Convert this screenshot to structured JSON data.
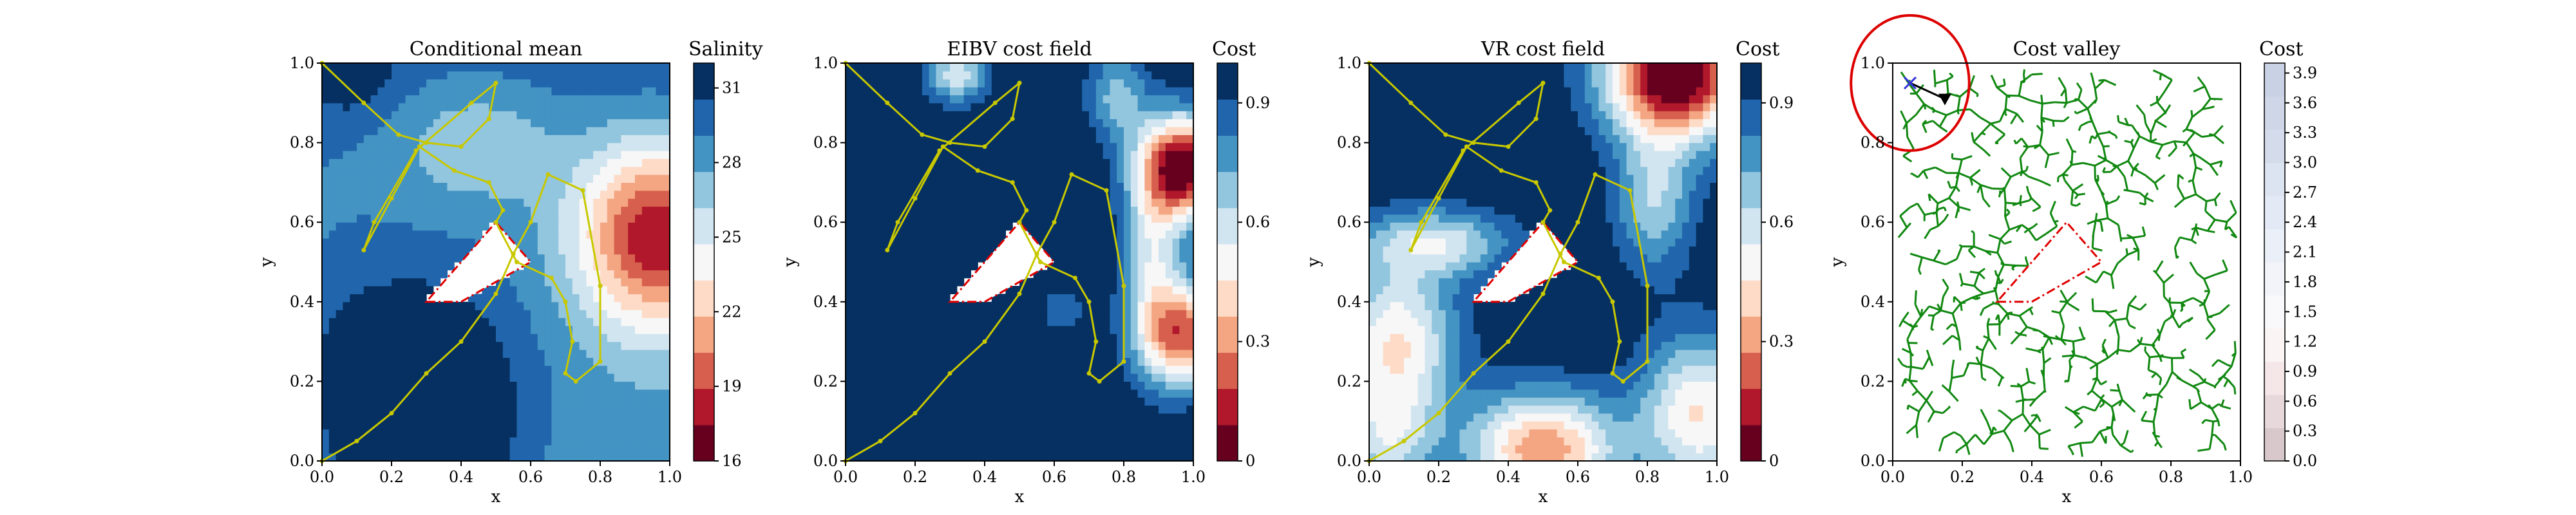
{
  "colors": {
    "rdbu": [
      "#67001f",
      "#b2182b",
      "#d6604d",
      "#f4a582",
      "#fddbc7",
      "#f7f7f7",
      "#d1e5f0",
      "#92c5de",
      "#4393c3",
      "#2166ac",
      "#053061"
    ],
    "path_yellow": "#c8c800",
    "obstacle_red": "#e00000",
    "tree_green": "#118811",
    "start_blue": "#3333dd",
    "current_black": "#000000",
    "budget_circle": "#dd0000"
  },
  "chart_data": [
    {
      "type": "heatmap",
      "title": "Conditional mean",
      "xlabel": "x",
      "ylabel": "y",
      "xlim": [
        0,
        1
      ],
      "ylim": [
        0,
        1
      ],
      "xticks": [
        "0.0",
        "0.2",
        "0.4",
        "0.6",
        "0.8",
        "1.0"
      ],
      "yticks": [
        "0.0",
        "0.2",
        "0.4",
        "0.6",
        "0.8",
        "1.0"
      ],
      "colorbar": {
        "label": "Salinity",
        "range": [
          16,
          32
        ],
        "ticks": [
          16,
          19,
          22,
          25,
          28,
          31
        ],
        "colors": [
          "#67001f",
          "#b2182b",
          "#d6604d",
          "#f4a582",
          "#fddbc7",
          "#f7f7f7",
          "#d1e5f0",
          "#92c5de",
          "#4393c3",
          "#2166ac",
          "#053061"
        ]
      },
      "field": {
        "base": 27.3,
        "gradient": [
          0.8,
          2.5
        ],
        "bumps": [
          {
            "x": 0.28,
            "y": 0.05,
            "amp": 6.0,
            "sx": 0.2,
            "sy": 0.2
          },
          {
            "x": 0.2,
            "y": 0.28,
            "amp": 2.2,
            "sx": 0.22,
            "sy": 0.16
          },
          {
            "x": 0.97,
            "y": 0.57,
            "amp": -12.0,
            "sx": 0.17,
            "sy": 0.17
          },
          {
            "x": 0.45,
            "y": 0.8,
            "amp": -3.0,
            "sx": 0.18,
            "sy": 0.12
          },
          {
            "x": 0.08,
            "y": 0.97,
            "amp": 2.0,
            "sx": 0.1,
            "sy": 0.08
          }
        ]
      },
      "obstacle": [
        [
          0.3,
          0.4
        ],
        [
          0.4,
          0.4
        ],
        [
          0.6,
          0.5
        ],
        [
          0.5,
          0.6
        ]
      ],
      "path": [
        [
          0.0,
          1.0
        ],
        [
          0.12,
          0.9
        ],
        [
          0.22,
          0.82
        ],
        [
          0.3,
          0.8
        ],
        [
          0.4,
          0.79
        ],
        [
          0.48,
          0.86
        ],
        [
          0.5,
          0.95
        ],
        [
          0.43,
          0.9
        ],
        [
          0.27,
          0.78
        ],
        [
          0.15,
          0.6
        ],
        [
          0.12,
          0.53
        ],
        [
          0.2,
          0.66
        ],
        [
          0.28,
          0.79
        ],
        [
          0.38,
          0.73
        ],
        [
          0.48,
          0.7
        ],
        [
          0.52,
          0.63
        ],
        [
          0.5,
          0.6
        ],
        [
          0.56,
          0.5
        ],
        [
          0.66,
          0.46
        ],
        [
          0.7,
          0.4
        ],
        [
          0.72,
          0.3
        ],
        [
          0.7,
          0.22
        ],
        [
          0.73,
          0.2
        ],
        [
          0.8,
          0.25
        ],
        [
          0.8,
          0.44
        ],
        [
          0.75,
          0.68
        ],
        [
          0.65,
          0.72
        ],
        [
          0.6,
          0.6
        ],
        [
          0.55,
          0.52
        ],
        [
          0.5,
          0.42
        ],
        [
          0.4,
          0.3
        ],
        [
          0.3,
          0.22
        ],
        [
          0.2,
          0.12
        ],
        [
          0.1,
          0.05
        ],
        [
          0.0,
          0.0
        ]
      ]
    },
    {
      "type": "heatmap",
      "title": "EIBV cost field",
      "xlabel": "x",
      "ylabel": "y",
      "xlim": [
        0,
        1
      ],
      "ylim": [
        0,
        1
      ],
      "xticks": [
        "0.0",
        "0.2",
        "0.4",
        "0.6",
        "0.8",
        "1.0"
      ],
      "yticks": [
        "0.0",
        "0.2",
        "0.4",
        "0.6",
        "0.8",
        "1.0"
      ],
      "colorbar": {
        "label": "Cost",
        "range": [
          0,
          1
        ],
        "ticks": [
          0.0,
          0.3,
          0.6,
          0.9
        ],
        "colors": [
          "#67001f",
          "#b2182b",
          "#d6604d",
          "#f4a582",
          "#fddbc7",
          "#f7f7f7",
          "#d1e5f0",
          "#92c5de",
          "#4393c3",
          "#2166ac",
          "#053061"
        ]
      },
      "field": {
        "base": 1.0,
        "gradient": [
          0,
          0
        ],
        "bumps": [
          {
            "x": 0.98,
            "y": 0.74,
            "amp": -1.0,
            "sx": 0.09,
            "sy": 0.09
          },
          {
            "x": 0.98,
            "y": 0.32,
            "amp": -0.75,
            "sx": 0.09,
            "sy": 0.09
          },
          {
            "x": 0.88,
            "y": 0.52,
            "amp": -0.4,
            "sx": 0.06,
            "sy": 0.18
          },
          {
            "x": 0.32,
            "y": 0.97,
            "amp": -0.42,
            "sx": 0.06,
            "sy": 0.05
          },
          {
            "x": 0.78,
            "y": 0.92,
            "amp": -0.3,
            "sx": 0.06,
            "sy": 0.08
          },
          {
            "x": 0.62,
            "y": 0.38,
            "amp": -0.15,
            "sx": 0.05,
            "sy": 0.05
          }
        ]
      },
      "obstacle": [
        [
          0.3,
          0.4
        ],
        [
          0.4,
          0.4
        ],
        [
          0.6,
          0.5
        ],
        [
          0.5,
          0.6
        ]
      ],
      "path": [
        [
          0.0,
          1.0
        ],
        [
          0.12,
          0.9
        ],
        [
          0.22,
          0.82
        ],
        [
          0.3,
          0.8
        ],
        [
          0.4,
          0.79
        ],
        [
          0.48,
          0.86
        ],
        [
          0.5,
          0.95
        ],
        [
          0.43,
          0.9
        ],
        [
          0.27,
          0.78
        ],
        [
          0.15,
          0.6
        ],
        [
          0.12,
          0.53
        ],
        [
          0.2,
          0.66
        ],
        [
          0.28,
          0.79
        ],
        [
          0.38,
          0.73
        ],
        [
          0.48,
          0.7
        ],
        [
          0.52,
          0.63
        ],
        [
          0.5,
          0.6
        ],
        [
          0.56,
          0.5
        ],
        [
          0.66,
          0.46
        ],
        [
          0.7,
          0.4
        ],
        [
          0.72,
          0.3
        ],
        [
          0.7,
          0.22
        ],
        [
          0.73,
          0.2
        ],
        [
          0.8,
          0.25
        ],
        [
          0.8,
          0.44
        ],
        [
          0.75,
          0.68
        ],
        [
          0.65,
          0.72
        ],
        [
          0.6,
          0.6
        ],
        [
          0.55,
          0.52
        ],
        [
          0.5,
          0.42
        ],
        [
          0.4,
          0.3
        ],
        [
          0.3,
          0.22
        ],
        [
          0.2,
          0.12
        ],
        [
          0.1,
          0.05
        ],
        [
          0.0,
          0.0
        ]
      ]
    },
    {
      "type": "heatmap",
      "title": "VR cost field",
      "xlabel": "x",
      "ylabel": "y",
      "xlim": [
        0,
        1
      ],
      "ylim": [
        0,
        1
      ],
      "xticks": [
        "0.0",
        "0.2",
        "0.4",
        "0.6",
        "0.8",
        "1.0"
      ],
      "yticks": [
        "0.0",
        "0.2",
        "0.4",
        "0.6",
        "0.8",
        "1.0"
      ],
      "colorbar": {
        "label": "Cost",
        "range": [
          0,
          1
        ],
        "ticks": [
          0.0,
          0.3,
          0.6,
          0.9
        ],
        "colors": [
          "#67001f",
          "#b2182b",
          "#d6604d",
          "#f4a582",
          "#fddbc7",
          "#f7f7f7",
          "#d1e5f0",
          "#92c5de",
          "#4393c3",
          "#2166ac",
          "#053061"
        ]
      },
      "field": {
        "base": 1.0,
        "gradient": [
          0,
          0
        ],
        "bumps": [
          {
            "x": 0.88,
            "y": 0.98,
            "amp": -1.1,
            "sx": 0.14,
            "sy": 0.12
          },
          {
            "x": 0.5,
            "y": 0.03,
            "amp": -0.72,
            "sx": 0.15,
            "sy": 0.1
          },
          {
            "x": 0.08,
            "y": 0.3,
            "amp": -0.55,
            "sx": 0.12,
            "sy": 0.14
          },
          {
            "x": 0.95,
            "y": 0.12,
            "amp": -0.55,
            "sx": 0.12,
            "sy": 0.14
          },
          {
            "x": 0.2,
            "y": 0.55,
            "amp": -0.4,
            "sx": 0.15,
            "sy": 0.06
          },
          {
            "x": 0.05,
            "y": 0.05,
            "amp": -0.35,
            "sx": 0.1,
            "sy": 0.1
          },
          {
            "x": 0.82,
            "y": 0.65,
            "amp": -0.35,
            "sx": 0.08,
            "sy": 0.12
          }
        ]
      },
      "obstacle": [
        [
          0.3,
          0.4
        ],
        [
          0.4,
          0.4
        ],
        [
          0.6,
          0.5
        ],
        [
          0.5,
          0.6
        ]
      ],
      "path": [
        [
          0.0,
          1.0
        ],
        [
          0.12,
          0.9
        ],
        [
          0.22,
          0.82
        ],
        [
          0.3,
          0.8
        ],
        [
          0.4,
          0.79
        ],
        [
          0.48,
          0.86
        ],
        [
          0.5,
          0.95
        ],
        [
          0.43,
          0.9
        ],
        [
          0.27,
          0.78
        ],
        [
          0.15,
          0.6
        ],
        [
          0.12,
          0.53
        ],
        [
          0.2,
          0.66
        ],
        [
          0.28,
          0.79
        ],
        [
          0.38,
          0.73
        ],
        [
          0.48,
          0.7
        ],
        [
          0.52,
          0.63
        ],
        [
          0.5,
          0.6
        ],
        [
          0.56,
          0.5
        ],
        [
          0.66,
          0.46
        ],
        [
          0.7,
          0.4
        ],
        [
          0.72,
          0.3
        ],
        [
          0.7,
          0.22
        ],
        [
          0.73,
          0.2
        ],
        [
          0.8,
          0.25
        ],
        [
          0.8,
          0.44
        ],
        [
          0.75,
          0.68
        ],
        [
          0.65,
          0.72
        ],
        [
          0.6,
          0.6
        ],
        [
          0.55,
          0.52
        ],
        [
          0.5,
          0.42
        ],
        [
          0.4,
          0.3
        ],
        [
          0.3,
          0.22
        ],
        [
          0.2,
          0.12
        ],
        [
          0.1,
          0.05
        ],
        [
          0.0,
          0.0
        ]
      ]
    },
    {
      "type": "tree",
      "title": "Cost valley",
      "xlabel": "x",
      "ylabel": "y",
      "xlim": [
        0,
        1
      ],
      "ylim": [
        0,
        1
      ],
      "xticks": [
        "0.0",
        "0.2",
        "0.4",
        "0.6",
        "0.8",
        "1.0"
      ],
      "yticks": [
        "0.0",
        "0.2",
        "0.4",
        "0.6",
        "0.8",
        "1.0"
      ],
      "colorbar": {
        "label": "Cost",
        "range": [
          0,
          4.0
        ],
        "ticks": [
          "0.0",
          "0.3",
          "0.6",
          "0.9",
          "1.2",
          "1.5",
          "1.8",
          "2.1",
          "2.4",
          "2.7",
          "3.0",
          "3.3",
          "3.6",
          "3.9"
        ],
        "colors": [
          "#d8c8cc",
          "#e7d8dc",
          "#f5e6e8",
          "#faf4f4",
          "#f9f9fb",
          "#f2f4fa",
          "#ebeff8",
          "#e3e9f5",
          "#dde4f1",
          "#d4dcec",
          "#ced6e8",
          "#c9d1e4"
        ]
      },
      "obstacle": [
        [
          0.3,
          0.4
        ],
        [
          0.4,
          0.4
        ],
        [
          0.6,
          0.5
        ],
        [
          0.5,
          0.6
        ]
      ],
      "start_point": [
        0.05,
        0.95
      ],
      "current_point": [
        0.15,
        0.91
      ],
      "budget_circle": {
        "center": [
          0.05,
          0.95
        ],
        "radius": 0.17
      },
      "tree_seed": 7,
      "tree_nodes": 900
    }
  ]
}
